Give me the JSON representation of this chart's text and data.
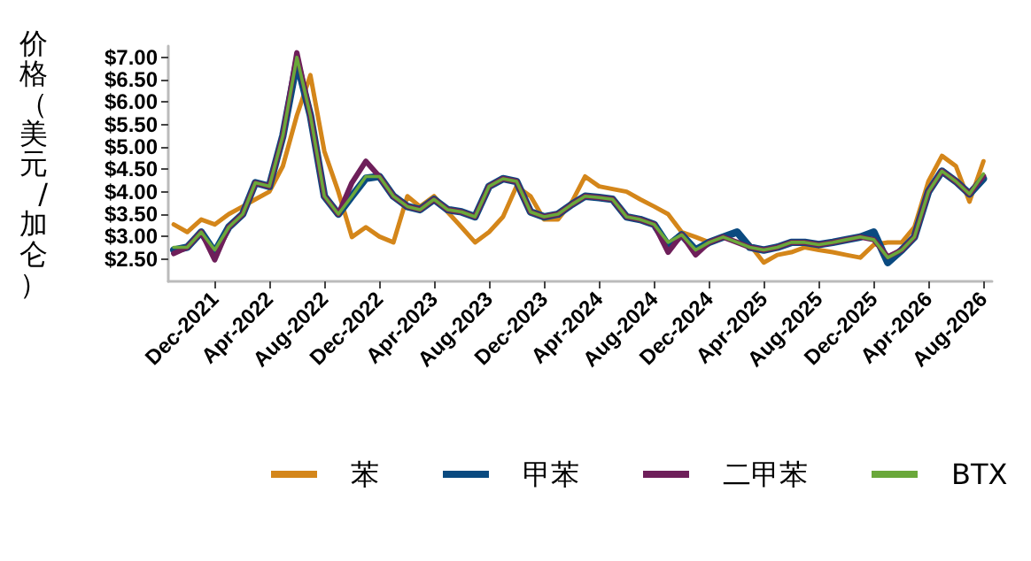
{
  "chart_data": {
    "type": "line",
    "ylabel": "价格（美元/加仑）",
    "x": [
      "2021-09",
      "2021-10",
      "2021-11",
      "2021-12",
      "2022-01",
      "2022-02",
      "2022-03",
      "2022-04",
      "2022-05",
      "2022-06",
      "2022-07",
      "2022-08",
      "2022-09",
      "2022-10",
      "2022-11",
      "2022-12",
      "2023-01",
      "2023-02",
      "2023-03",
      "2023-04",
      "2023-05",
      "2023-06",
      "2023-07",
      "2023-08",
      "2023-09",
      "2023-10",
      "2023-11",
      "2023-12",
      "2024-01",
      "2024-02",
      "2024-03",
      "2024-04",
      "2024-05",
      "2024-06",
      "2024-07",
      "2024-08",
      "2024-09",
      "2024-10",
      "2024-11",
      "2024-12",
      "2025-01",
      "2025-02",
      "2025-03",
      "2025-04",
      "2025-05",
      "2025-06",
      "2025-07",
      "2025-08",
      "2025-09",
      "2025-10",
      "2025-11",
      "2025-12",
      "2026-01",
      "2026-02",
      "2026-03",
      "2026-04",
      "2026-05",
      "2026-06",
      "2026-07",
      "2026-08"
    ],
    "series": [
      {
        "name": "苯",
        "color": "#d4861a",
        "values": [
          3.27,
          3.1,
          3.38,
          3.27,
          3.5,
          3.67,
          3.83,
          4.0,
          4.57,
          5.7,
          6.6,
          4.9,
          4.0,
          2.99,
          3.21,
          3.0,
          2.87,
          3.9,
          3.67,
          3.9,
          3.55,
          3.21,
          2.87,
          3.1,
          3.44,
          4.12,
          3.9,
          3.38,
          3.38,
          3.78,
          4.34,
          4.12,
          4.06,
          4.0,
          3.83,
          3.67,
          3.5,
          3.1,
          2.99,
          2.87,
          2.99,
          3.1,
          2.82,
          2.42,
          2.59,
          2.65,
          2.76,
          2.7,
          2.65,
          2.59,
          2.53,
          2.82,
          2.87,
          2.87,
          3.21,
          4.23,
          4.8,
          4.57,
          3.78,
          4.68
        ]
      },
      {
        "name": "甲苯",
        "color": "#0a4a80",
        "values": [
          2.7,
          2.76,
          3.1,
          2.65,
          3.21,
          3.5,
          4.2,
          4.12,
          5.25,
          6.9,
          5.7,
          3.9,
          3.5,
          3.9,
          4.3,
          4.34,
          3.9,
          3.67,
          3.6,
          3.83,
          3.6,
          3.55,
          3.44,
          4.12,
          4.29,
          4.23,
          3.55,
          3.44,
          3.5,
          3.72,
          3.9,
          3.87,
          3.83,
          3.44,
          3.38,
          3.27,
          2.8,
          3.04,
          2.7,
          2.87,
          2.99,
          3.1,
          2.76,
          2.7,
          2.76,
          2.87,
          2.87,
          2.82,
          2.87,
          2.93,
          2.99,
          3.1,
          2.42,
          2.7,
          2.99,
          4.0,
          4.46,
          4.23,
          3.95,
          4.29
        ]
      },
      {
        "name": "二甲苯",
        "color": "#6e1f5a",
        "values": [
          2.62,
          2.76,
          3.1,
          2.48,
          3.21,
          3.5,
          4.2,
          4.12,
          5.25,
          7.1,
          5.7,
          3.9,
          3.5,
          4.2,
          4.68,
          4.34,
          3.9,
          3.67,
          3.6,
          3.83,
          3.6,
          3.55,
          3.44,
          4.12,
          4.29,
          4.23,
          3.55,
          3.44,
          3.5,
          3.72,
          3.9,
          3.87,
          3.83,
          3.44,
          3.38,
          3.27,
          2.65,
          3.04,
          2.59,
          2.87,
          2.99,
          2.87,
          2.76,
          2.7,
          2.76,
          2.87,
          2.87,
          2.82,
          2.87,
          2.93,
          2.99,
          2.93,
          2.55,
          2.7,
          2.99,
          4.0,
          4.46,
          4.23,
          3.95,
          4.35
        ]
      },
      {
        "name": "BTX",
        "color": "#6aa83a",
        "values": [
          2.76,
          2.76,
          3.1,
          2.7,
          3.21,
          3.5,
          4.2,
          4.12,
          5.25,
          7.0,
          5.7,
          3.9,
          3.5,
          3.9,
          4.34,
          4.34,
          3.9,
          3.67,
          3.6,
          3.83,
          3.6,
          3.55,
          3.44,
          4.12,
          4.29,
          4.23,
          3.55,
          3.44,
          3.5,
          3.72,
          3.9,
          3.87,
          3.83,
          3.44,
          3.38,
          3.27,
          2.87,
          3.04,
          2.7,
          2.87,
          2.99,
          2.87,
          2.76,
          2.7,
          2.76,
          2.87,
          2.87,
          2.82,
          2.87,
          2.93,
          2.99,
          2.93,
          2.53,
          2.7,
          2.99,
          4.0,
          4.46,
          4.23,
          3.95,
          4.4
        ]
      }
    ],
    "xlim": [
      "2021-08-20",
      "2026-08-20"
    ],
    "xticks": [
      {
        "value": "2021-12-01",
        "label": "Dec-2021"
      },
      {
        "value": "2022-04-01",
        "label": "Apr-2022"
      },
      {
        "value": "2022-08-01",
        "label": "Aug-2022"
      },
      {
        "value": "2022-12-01",
        "label": "Dec-2022"
      },
      {
        "value": "2023-04-01",
        "label": "Apr-2023"
      },
      {
        "value": "2023-08-01",
        "label": "Aug-2023"
      },
      {
        "value": "2023-12-01",
        "label": "Dec-2023"
      },
      {
        "value": "2024-04-01",
        "label": "Apr-2024"
      },
      {
        "value": "2024-08-01",
        "label": "Aug-2024"
      },
      {
        "value": "2024-12-01",
        "label": "Dec-2024"
      },
      {
        "value": "2025-04-01",
        "label": "Apr-2025"
      },
      {
        "value": "2025-08-01",
        "label": "Aug-2025"
      },
      {
        "value": "2025-12-01",
        "label": "Dec-2025"
      },
      {
        "value": "2026-04-01",
        "label": "Apr-2026"
      },
      {
        "value": "2026-08-01",
        "label": "Aug-2026"
      }
    ],
    "ylim": [
      2.0,
      7.25
    ],
    "yticks": [
      {
        "value": 2.5,
        "label": "$2.50"
      },
      {
        "value": 3.0,
        "label": "$3.00"
      },
      {
        "value": 3.5,
        "label": "$3.50"
      },
      {
        "value": 4.0,
        "label": "$4.00"
      },
      {
        "value": 4.5,
        "label": "$4.50"
      },
      {
        "value": 5.0,
        "label": "$5.00"
      },
      {
        "value": 5.5,
        "label": "$5.50"
      },
      {
        "value": 6.0,
        "label": "$6.00"
      },
      {
        "value": 6.5,
        "label": "$6.50"
      },
      {
        "value": 7.0,
        "label": "$7.00"
      }
    ],
    "grid": false,
    "legend": "bottom",
    "marker": "none",
    "line_style": "solid"
  }
}
